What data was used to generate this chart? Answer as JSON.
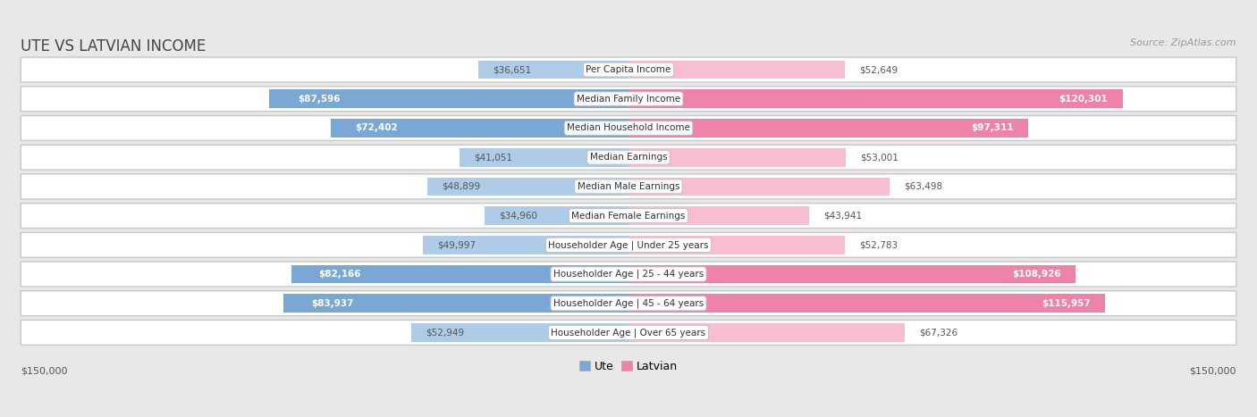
{
  "title": "UTE VS LATVIAN INCOME",
  "source": "Source: ZipAtlas.com",
  "categories": [
    "Per Capita Income",
    "Median Family Income",
    "Median Household Income",
    "Median Earnings",
    "Median Male Earnings",
    "Median Female Earnings",
    "Householder Age | Under 25 years",
    "Householder Age | 25 - 44 years",
    "Householder Age | 45 - 64 years",
    "Householder Age | Over 65 years"
  ],
  "ute_values": [
    36651,
    87596,
    72402,
    41051,
    48899,
    34960,
    49997,
    82166,
    83937,
    52949
  ],
  "latvian_values": [
    52649,
    120301,
    97311,
    53001,
    63498,
    43941,
    52783,
    108926,
    115957,
    67326
  ],
  "ute_color_light": "#AECBE8",
  "ute_color_dark": "#7BA7D4",
  "latvian_color_light": "#F7BDD0",
  "latvian_color_dark": "#EE82A8",
  "max_val": 150000,
  "bg_color": "#e8e8e8",
  "row_bg": "#ffffff",
  "row_border": "#cccccc",
  "title_color": "#444444",
  "source_color": "#999999",
  "label_outside_color": "#555555",
  "label_inside_color": "#ffffff",
  "bottom_label_left": "$150,000",
  "bottom_label_right": "$150,000",
  "legend_ute": "Ute",
  "legend_latvian": "Latvian",
  "inside_threshold_ute": 0.4,
  "inside_threshold_latvian": 0.55
}
